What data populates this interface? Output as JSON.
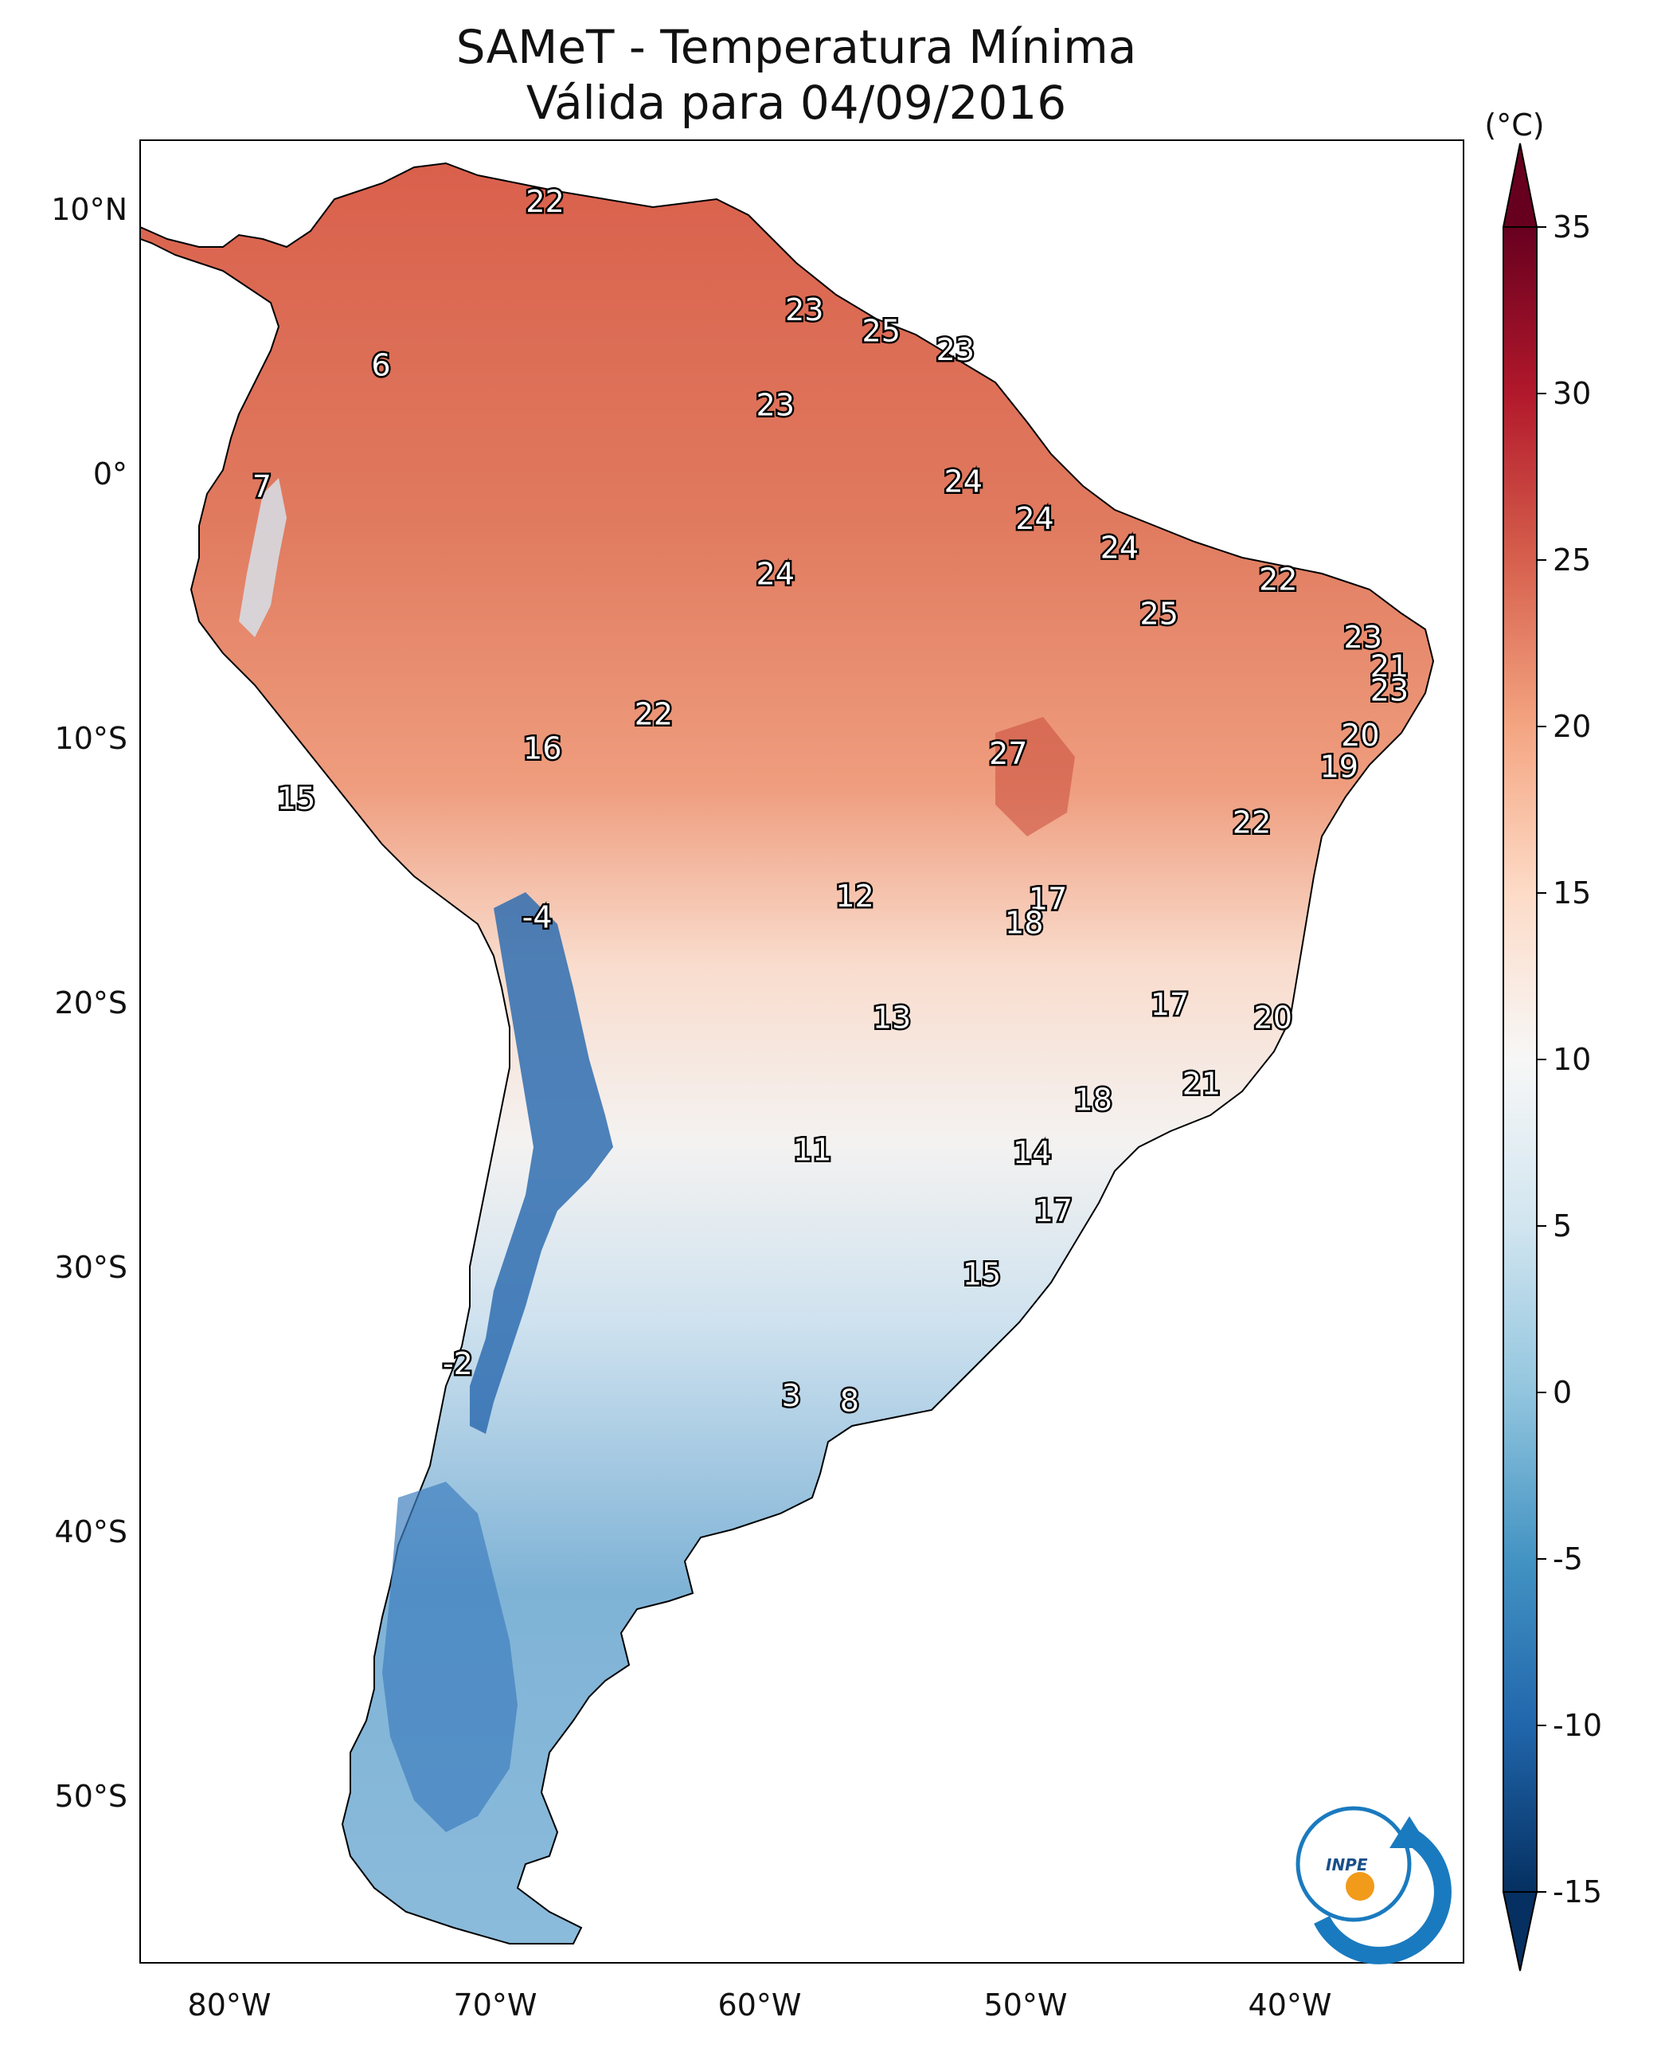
{
  "title": "SAMeT - Temperatura Mínima",
  "subtitle": "Válida para 04/09/2016",
  "colorbar": {
    "unit": "(°C)",
    "ticks": [
      "35",
      "30",
      "25",
      "20",
      "15",
      "10",
      "5",
      "0",
      "-5",
      "-10",
      "-15"
    ],
    "range": [
      -15,
      35
    ],
    "extend": "both",
    "colormap": "RdBu_r"
  },
  "axes": {
    "lat_ticks": [
      "10°N",
      "0°",
      "10°S",
      "20°S",
      "30°S",
      "40°S",
      "50°S"
    ],
    "lon_ticks": [
      "80°W",
      "70°W",
      "60°W",
      "50°W",
      "40°W"
    ]
  },
  "logo": "INPE",
  "chart_data": {
    "type": "heatmap",
    "title": "SAMeT - Temperatura Mínima",
    "subtitle": "Válida para 04/09/2016",
    "lon_range": [
      -83,
      -33
    ],
    "lat_range": [
      -56,
      13
    ],
    "value_range": [
      -15,
      35
    ],
    "labels": [
      {
        "lon": -67.7,
        "lat": 10.6,
        "value": "22"
      },
      {
        "lon": -57.9,
        "lat": 6.5,
        "value": "23"
      },
      {
        "lon": -55.0,
        "lat": 5.7,
        "value": "25"
      },
      {
        "lon": -52.2,
        "lat": 5.0,
        "value": "23"
      },
      {
        "lon": -73.9,
        "lat": 4.4,
        "value": "6"
      },
      {
        "lon": -59.0,
        "lat": 2.9,
        "value": "23"
      },
      {
        "lon": -78.4,
        "lat": -0.2,
        "value": "7"
      },
      {
        "lon": -51.9,
        "lat": 0.0,
        "value": "24"
      },
      {
        "lon": -49.2,
        "lat": -1.4,
        "value": "24"
      },
      {
        "lon": -46.0,
        "lat": -2.5,
        "value": "24"
      },
      {
        "lon": -59.0,
        "lat": -3.5,
        "value": "24"
      },
      {
        "lon": -40.0,
        "lat": -3.7,
        "value": "22"
      },
      {
        "lon": -44.5,
        "lat": -5.0,
        "value": "25"
      },
      {
        "lon": -36.8,
        "lat": -5.9,
        "value": "23"
      },
      {
        "lon": -35.8,
        "lat": -7.0,
        "value": "21"
      },
      {
        "lon": -35.8,
        "lat": -7.9,
        "value": "23"
      },
      {
        "lon": -63.6,
        "lat": -8.8,
        "value": "22"
      },
      {
        "lon": -36.9,
        "lat": -9.6,
        "value": "20"
      },
      {
        "lon": -67.8,
        "lat": -10.1,
        "value": "16"
      },
      {
        "lon": -50.2,
        "lat": -10.3,
        "value": "27"
      },
      {
        "lon": -37.7,
        "lat": -10.8,
        "value": "19"
      },
      {
        "lon": -77.1,
        "lat": -12.0,
        "value": "15"
      },
      {
        "lon": -41.0,
        "lat": -12.9,
        "value": "22"
      },
      {
        "lon": -56.0,
        "lat": -15.7,
        "value": "12"
      },
      {
        "lon": -48.7,
        "lat": -15.8,
        "value": "17"
      },
      {
        "lon": -49.6,
        "lat": -16.7,
        "value": "18"
      },
      {
        "lon": -68.0,
        "lat": -16.5,
        "value": "-4"
      },
      {
        "lon": -44.1,
        "lat": -19.8,
        "value": "17"
      },
      {
        "lon": -54.6,
        "lat": -20.3,
        "value": "13"
      },
      {
        "lon": -40.2,
        "lat": -20.3,
        "value": "20"
      },
      {
        "lon": -42.9,
        "lat": -22.8,
        "value": "21"
      },
      {
        "lon": -47.0,
        "lat": -23.4,
        "value": "18"
      },
      {
        "lon": -57.6,
        "lat": -25.3,
        "value": "11"
      },
      {
        "lon": -49.3,
        "lat": -25.4,
        "value": "14"
      },
      {
        "lon": -48.5,
        "lat": -27.6,
        "value": "17"
      },
      {
        "lon": -51.2,
        "lat": -30.0,
        "value": "15"
      },
      {
        "lon": -71.0,
        "lat": -33.4,
        "value": "-2"
      },
      {
        "lon": -58.4,
        "lat": -34.6,
        "value": "3"
      },
      {
        "lon": -56.2,
        "lat": -34.8,
        "value": "8"
      }
    ]
  }
}
